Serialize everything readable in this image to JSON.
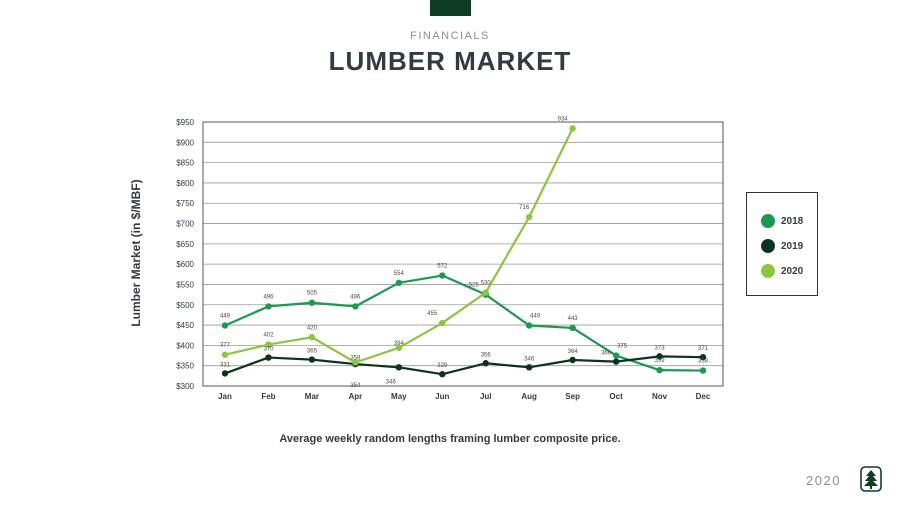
{
  "header": {
    "eyebrow": "FINANCIALS",
    "title": "LUMBER MARKET"
  },
  "caption": "Average weekly random lengths framing lumber composite price.",
  "footer": {
    "year": "2020",
    "logo_icon": "tree-seal-icon"
  },
  "colors": {
    "2018": "#1a9a4f",
    "2019": "#0d3320",
    "2020": "#8cc63f",
    "brand": "#0f3d23"
  },
  "chart_data": {
    "type": "line",
    "ylabel": "Lumber Market  (in $/MBF)",
    "categories": [
      "Jan",
      "Feb",
      "Mar",
      "Apr",
      "May",
      "Jun",
      "Jul",
      "Aug",
      "Sep",
      "Oct",
      "Nov",
      "Dec"
    ],
    "ylim": [
      300,
      950
    ],
    "yticks": [
      300,
      350,
      400,
      450,
      500,
      550,
      600,
      650,
      700,
      750,
      800,
      850,
      900,
      950
    ],
    "ytick_labels": [
      "$300",
      "$350",
      "$400",
      "$450",
      "$500",
      "$550",
      "$600",
      "$650",
      "$700",
      "$750",
      "$800",
      "$850",
      "$900",
      "$950"
    ],
    "grid": true,
    "legend_position": "right",
    "series": [
      {
        "name": "2018",
        "color": "#1a9a4f",
        "values": [
          449,
          496,
          505,
          496,
          554,
          572,
          525,
          449,
          443,
          375,
          339,
          338
        ]
      },
      {
        "name": "2019",
        "color": "#0d3320",
        "values": [
          331,
          370,
          365,
          354,
          346,
          329,
          356,
          346,
          364,
          360,
          373,
          371
        ]
      },
      {
        "name": "2020",
        "color": "#8cc63f",
        "values": [
          377,
          402,
          420,
          358,
          394,
          455,
          530,
          716,
          934,
          null,
          null,
          null
        ]
      }
    ]
  }
}
